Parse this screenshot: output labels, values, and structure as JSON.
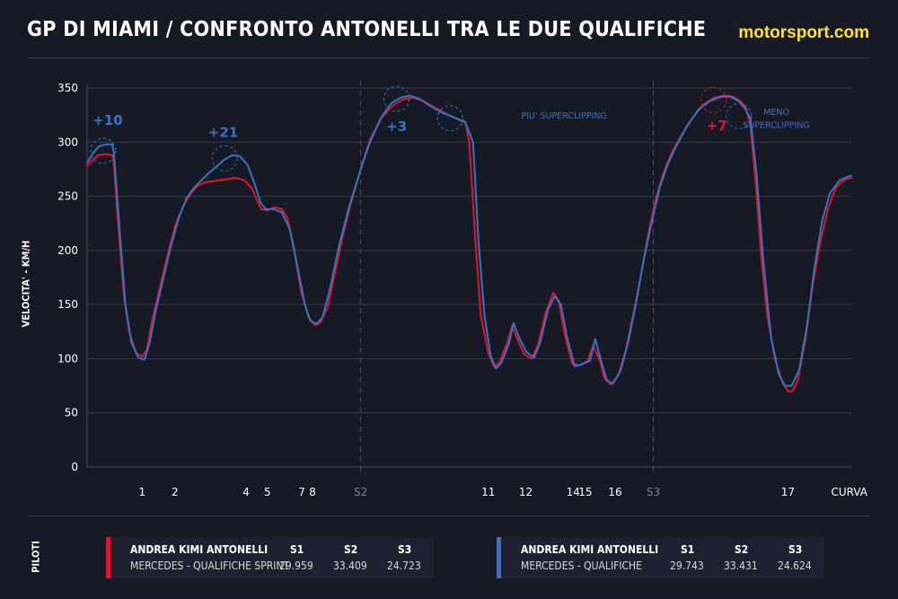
{
  "header": {
    "title": "GP DI MIAMI / CONFRONTO ANTONELLI TRA LE DUE QUALIFICHE",
    "brand": "motorsport.com"
  },
  "colors": {
    "sprint": "#e0142c",
    "quali": "#3a72c8",
    "background": "#161a24",
    "card": "#1e2230",
    "grid": "#3b3f4a",
    "brand": "#ffe135"
  },
  "chart_data": {
    "type": "line",
    "title": "GP DI MIAMI / CONFRONTO ANTONELLI TRA LE DUE QUALIFICHE",
    "xlabel": "CURVA",
    "ylabel": "VELOCITA' - KM/H",
    "ylim": [
      0,
      350
    ],
    "yticks": [
      0,
      50,
      100,
      150,
      200,
      250,
      300,
      350
    ],
    "grid": true,
    "xlim": [
      0,
      100
    ],
    "corner_labels": [
      {
        "label": "1",
        "x": 7.2
      },
      {
        "label": "2",
        "x": 11.5
      },
      {
        "label": "4",
        "x": 20.8
      },
      {
        "label": "5",
        "x": 23.6
      },
      {
        "label": "7",
        "x": 28.1
      },
      {
        "label": "8",
        "x": 29.5
      },
      {
        "label": "S2",
        "x": 35.8
      },
      {
        "label": "11",
        "x": 52.5
      },
      {
        "label": "12",
        "x": 57.4
      },
      {
        "label": "14",
        "x": 63.6
      },
      {
        "label": "15",
        "x": 65.2
      },
      {
        "label": "16",
        "x": 69.1
      },
      {
        "label": "S3",
        "x": 74.1
      },
      {
        "label": "17",
        "x": 91.7
      },
      {
        "label": "CURVA",
        "x": 100
      }
    ],
    "sector_lines": [
      35.8,
      74.1
    ],
    "series": [
      {
        "name": "MERCEDES - QUALIFICHE SPRINT",
        "color": "#e0142c",
        "points": [
          [
            0,
            278
          ],
          [
            0.8,
            284
          ],
          [
            1.5,
            288
          ],
          [
            2.5,
            289
          ],
          [
            3.3,
            288
          ],
          [
            3.5,
            280
          ],
          [
            4,
            230
          ],
          [
            4.8,
            160
          ],
          [
            5.5,
            125
          ],
          [
            6.4,
            105
          ],
          [
            7.2,
            102
          ],
          [
            7.8,
            108
          ],
          [
            8.5,
            135
          ],
          [
            9.5,
            165
          ],
          [
            10.5,
            195
          ],
          [
            11.5,
            222
          ],
          [
            12.5,
            240
          ],
          [
            13.5,
            252
          ],
          [
            14.5,
            260
          ],
          [
            15.5,
            263
          ],
          [
            16.5,
            264
          ],
          [
            17.5,
            265
          ],
          [
            18.5,
            266
          ],
          [
            19.5,
            267
          ],
          [
            20.5,
            265
          ],
          [
            21.5,
            258
          ],
          [
            22.2,
            247
          ],
          [
            22.8,
            238
          ],
          [
            23.6,
            237
          ],
          [
            24.5,
            240
          ],
          [
            25.5,
            238
          ],
          [
            26.2,
            230
          ],
          [
            27,
            205
          ],
          [
            28,
            162
          ],
          [
            29,
            138
          ],
          [
            29.8,
            131
          ],
          [
            30.5,
            133
          ],
          [
            31.5,
            148
          ],
          [
            32.5,
            182
          ],
          [
            33.5,
            215
          ],
          [
            34.5,
            243
          ],
          [
            35.8,
            275
          ],
          [
            37,
            302
          ],
          [
            38.5,
            322
          ],
          [
            40,
            334
          ],
          [
            41.5,
            340
          ],
          [
            42.7,
            341
          ],
          [
            44,
            338
          ],
          [
            45.5,
            332
          ],
          [
            47,
            326
          ],
          [
            48.2,
            322
          ],
          [
            49.5,
            319
          ],
          [
            50,
            300
          ],
          [
            50.8,
            210
          ],
          [
            51.5,
            140
          ],
          [
            52.5,
            105
          ],
          [
            53.3,
            92
          ],
          [
            54,
            97
          ],
          [
            55,
            115
          ],
          [
            55.6,
            130
          ],
          [
            56.3,
            118
          ],
          [
            57.2,
            104
          ],
          [
            58.2,
            100
          ],
          [
            59,
            113
          ],
          [
            60,
            142
          ],
          [
            61,
            161
          ],
          [
            61.7,
            154
          ],
          [
            62.5,
            122
          ],
          [
            63.5,
            95
          ],
          [
            64.5,
            94
          ],
          [
            65.5,
            98
          ],
          [
            66.2,
            112
          ],
          [
            67,
            100
          ],
          [
            67.7,
            82
          ],
          [
            68.5,
            76
          ],
          [
            69.5,
            84
          ],
          [
            70.5,
            108
          ],
          [
            71.5,
            142
          ],
          [
            72.5,
            178
          ],
          [
            73.5,
            218
          ],
          [
            74.5,
            250
          ],
          [
            75.5,
            273
          ],
          [
            76.5,
            290
          ],
          [
            77.5,
            303
          ],
          [
            79,
            320
          ],
          [
            80.5,
            334
          ],
          [
            82,
            341
          ],
          [
            83.5,
            343
          ],
          [
            84.5,
            342
          ],
          [
            85.5,
            338
          ],
          [
            86.2,
            332
          ],
          [
            86.8,
            315
          ],
          [
            87.5,
            262
          ],
          [
            88.2,
            195
          ],
          [
            89,
            140
          ],
          [
            90,
            100
          ],
          [
            91,
            78
          ],
          [
            91.7,
            70
          ],
          [
            92.3,
            70
          ],
          [
            93,
            80
          ],
          [
            94,
            118
          ],
          [
            95,
            170
          ],
          [
            96,
            210
          ],
          [
            97,
            240
          ],
          [
            98,
            258
          ],
          [
            99,
            265
          ],
          [
            100,
            267
          ]
        ]
      },
      {
        "name": "MERCEDES - QUALIFICHE",
        "color": "#3a72c8",
        "points": [
          [
            0,
            281
          ],
          [
            0.8,
            290
          ],
          [
            1.5,
            296
          ],
          [
            2.5,
            298
          ],
          [
            3.3,
            298
          ],
          [
            3.5,
            290
          ],
          [
            4.2,
            225
          ],
          [
            5,
            150
          ],
          [
            5.8,
            115
          ],
          [
            6.7,
            101
          ],
          [
            7.5,
            99
          ],
          [
            8.2,
            115
          ],
          [
            9,
            145
          ],
          [
            10,
            175
          ],
          [
            11,
            205
          ],
          [
            12,
            230
          ],
          [
            13,
            248
          ],
          [
            14,
            258
          ],
          [
            15,
            265
          ],
          [
            16,
            272
          ],
          [
            17,
            278
          ],
          [
            18,
            284
          ],
          [
            19,
            288
          ],
          [
            20,
            287
          ],
          [
            21,
            279
          ],
          [
            22,
            260
          ],
          [
            22.7,
            244
          ],
          [
            23.4,
            238
          ],
          [
            24.5,
            238
          ],
          [
            25.5,
            235
          ],
          [
            26.5,
            220
          ],
          [
            27.5,
            186
          ],
          [
            28.5,
            150
          ],
          [
            29.2,
            135
          ],
          [
            30,
            132
          ],
          [
            30.8,
            138
          ],
          [
            31.8,
            165
          ],
          [
            33,
            205
          ],
          [
            34.2,
            238
          ],
          [
            35.8,
            275
          ],
          [
            37,
            300
          ],
          [
            38.5,
            323
          ],
          [
            39.8,
            336
          ],
          [
            41,
            341
          ],
          [
            42.2,
            343
          ],
          [
            43.5,
            340
          ],
          [
            45,
            333
          ],
          [
            46.5,
            327
          ],
          [
            48,
            323
          ],
          [
            49.5,
            318
          ],
          [
            50.5,
            300
          ],
          [
            51.2,
            210
          ],
          [
            52,
            140
          ],
          [
            52.8,
            103
          ],
          [
            53.5,
            91
          ],
          [
            54.2,
            96
          ],
          [
            55.2,
            114
          ],
          [
            55.8,
            133
          ],
          [
            56.5,
            120
          ],
          [
            57.5,
            106
          ],
          [
            58.5,
            101
          ],
          [
            59.3,
            115
          ],
          [
            60.3,
            145
          ],
          [
            61.2,
            158
          ],
          [
            62,
            150
          ],
          [
            62.8,
            120
          ],
          [
            63.8,
            93
          ],
          [
            64.8,
            95
          ],
          [
            65.8,
            98
          ],
          [
            66.5,
            118
          ],
          [
            67.3,
            97
          ],
          [
            68,
            80
          ],
          [
            68.8,
            77
          ],
          [
            69.8,
            89
          ],
          [
            70.8,
            115
          ],
          [
            71.8,
            150
          ],
          [
            72.8,
            190
          ],
          [
            74,
            230
          ],
          [
            75,
            260
          ],
          [
            76,
            280
          ],
          [
            77,
            295
          ],
          [
            78.5,
            315
          ],
          [
            80,
            330
          ],
          [
            81.5,
            338
          ],
          [
            83,
            342
          ],
          [
            84.2,
            342
          ],
          [
            85.2,
            338
          ],
          [
            86,
            332
          ],
          [
            86.8,
            322
          ],
          [
            87.6,
            270
          ],
          [
            88.5,
            190
          ],
          [
            89.5,
            120
          ],
          [
            90.5,
            86
          ],
          [
            91.3,
            75
          ],
          [
            92.2,
            75
          ],
          [
            93.2,
            90
          ],
          [
            94.2,
            130
          ],
          [
            95.2,
            185
          ],
          [
            96.2,
            228
          ],
          [
            97.2,
            253
          ],
          [
            98.5,
            265
          ],
          [
            99.5,
            268
          ],
          [
            100,
            269
          ]
        ]
      }
    ],
    "annotations": [
      {
        "text": "+10",
        "series": "MERCEDES - QUALIFICHE",
        "x": 2.7,
        "y": 316
      },
      {
        "text": "+21",
        "series": "MERCEDES - QUALIFICHE",
        "x": 17.8,
        "y": 305
      },
      {
        "text": "+3",
        "series": "MERCEDES - QUALIFICHE",
        "x": 40.5,
        "y": 310
      },
      {
        "text": "PIU' SUPERCLIPPING",
        "series": "MERCEDES - QUALIFICHE",
        "x": 56.8,
        "y": 322
      },
      {
        "text": "+7",
        "series": "MERCEDES - QUALIFICHE SPRINT",
        "x": 82.4,
        "y": 311
      },
      {
        "text": "MENO",
        "series": "MERCEDES - QUALIFICHE",
        "x": 90.2,
        "y": 325
      },
      {
        "text": "SUPERCLIPPING",
        "series": "MERCEDES - QUALIFICHE",
        "x": 90.2,
        "y": 313
      }
    ],
    "markers": [
      {
        "series": "MERCEDES - QUALIFICHE",
        "x": 2.1,
        "y": 292
      },
      {
        "series": "MERCEDES - QUALIFICHE",
        "x": 18.0,
        "y": 285
      },
      {
        "series": "MERCEDES - QUALIFICHE",
        "x": 40.5,
        "y": 340
      },
      {
        "series": "MERCEDES - QUALIFICHE",
        "x": 47.5,
        "y": 322
      },
      {
        "series": "MERCEDES - QUALIFICHE SPRINT",
        "x": 82.0,
        "y": 339
      },
      {
        "series": "MERCEDES - QUALIFICHE",
        "x": 85.3,
        "y": 324
      }
    ]
  },
  "legend": {
    "section_label": "PILOTI",
    "cards": [
      {
        "color": "#e0142c",
        "driver": "ANDREA KIMI ANTONELLI",
        "team": "MERCEDES - QUALIFICHE SPRINT",
        "sectors": [
          {
            "label": "S1",
            "time": "29.959"
          },
          {
            "label": "S2",
            "time": "33.409"
          },
          {
            "label": "S3",
            "time": "24.723"
          }
        ]
      },
      {
        "color": "#3a72c8",
        "driver": "ANDREA KIMI ANTONELLI",
        "team": "MERCEDES - QUALIFICHE",
        "sectors": [
          {
            "label": "S1",
            "time": "29.743"
          },
          {
            "label": "S2",
            "time": "33.431"
          },
          {
            "label": "S3",
            "time": "24.624"
          }
        ]
      }
    ]
  }
}
